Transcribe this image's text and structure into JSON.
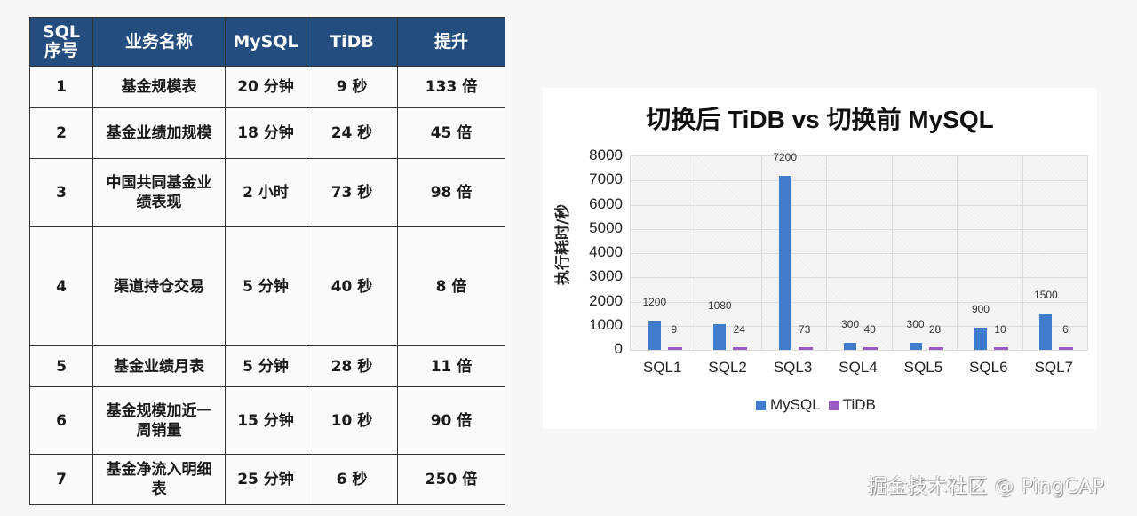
{
  "table": {
    "headers": [
      "SQL\n序号",
      "业务名称",
      "MySQL",
      "TiDB",
      "提升"
    ],
    "header_lines": [
      [
        "SQL",
        "序号"
      ],
      [
        "业务名称"
      ],
      [
        "MySQL"
      ],
      [
        "TiDB"
      ],
      [
        "提升"
      ]
    ],
    "rows": [
      {
        "id": "1",
        "name": "基金规模表",
        "name_lines": [
          "基金规模表"
        ],
        "mysql": "20 分钟",
        "tidb": "9 秒",
        "gain": "133 倍",
        "height": 47
      },
      {
        "id": "2",
        "name": "基金业绩加规模",
        "name_lines": [
          "基金业绩加规模"
        ],
        "mysql": "18 分钟",
        "tidb": "24 秒",
        "gain": "45 倍",
        "height": 57
      },
      {
        "id": "3",
        "name": "中国共同基金业绩表现",
        "name_lines": [
          "中国共同基金业",
          "绩表现"
        ],
        "mysql": "2 小时",
        "tidb": "73 秒",
        "gain": "98 倍",
        "height": 77
      },
      {
        "id": "4",
        "name": "渠道持仓交易",
        "name_lines": [
          "渠道持仓交易"
        ],
        "mysql": "5 分钟",
        "tidb": "40 秒",
        "gain": "8 倍",
        "height": 134
      },
      {
        "id": "5",
        "name": "基金业绩月表",
        "name_lines": [
          "基金业绩月表"
        ],
        "mysql": "5 分钟",
        "tidb": "28 秒",
        "gain": "11 倍",
        "height": 46
      },
      {
        "id": "6",
        "name": "基金规模加近一周销量",
        "name_lines": [
          "基金规模加近一",
          "周销量"
        ],
        "mysql": "15 分钟",
        "tidb": "10 秒",
        "gain": "90 倍",
        "height": 76
      },
      {
        "id": "7",
        "name": "基金净流入明细表",
        "name_lines": [
          "基金净流入明细",
          "表"
        ],
        "mysql": "25 分钟",
        "tidb": "6 秒",
        "gain": "250 倍",
        "height": 57
      }
    ]
  },
  "chart_data": {
    "type": "bar",
    "title": "切换后 TiDB vs 切换前 MySQL",
    "xlabel": "",
    "ylabel": "执行耗时/秒",
    "categories": [
      "SQL1",
      "SQL2",
      "SQL3",
      "SQL4",
      "SQL5",
      "SQL6",
      "SQL7"
    ],
    "series": [
      {
        "name": "MySQL",
        "color": "#3f7ccb",
        "values": [
          1200,
          1080,
          7200,
          300,
          300,
          900,
          1500
        ]
      },
      {
        "name": "TiDB",
        "color": "#9b59c6",
        "values": [
          9,
          24,
          73,
          40,
          28,
          10,
          6
        ]
      }
    ],
    "ylim": [
      0,
      8000
    ],
    "yticks": [
      0,
      1000,
      2000,
      3000,
      4000,
      5000,
      6000,
      7000,
      8000
    ],
    "grid": true,
    "legend_position": "bottom"
  },
  "watermark": "掘金技术社区 @ PingCAP"
}
